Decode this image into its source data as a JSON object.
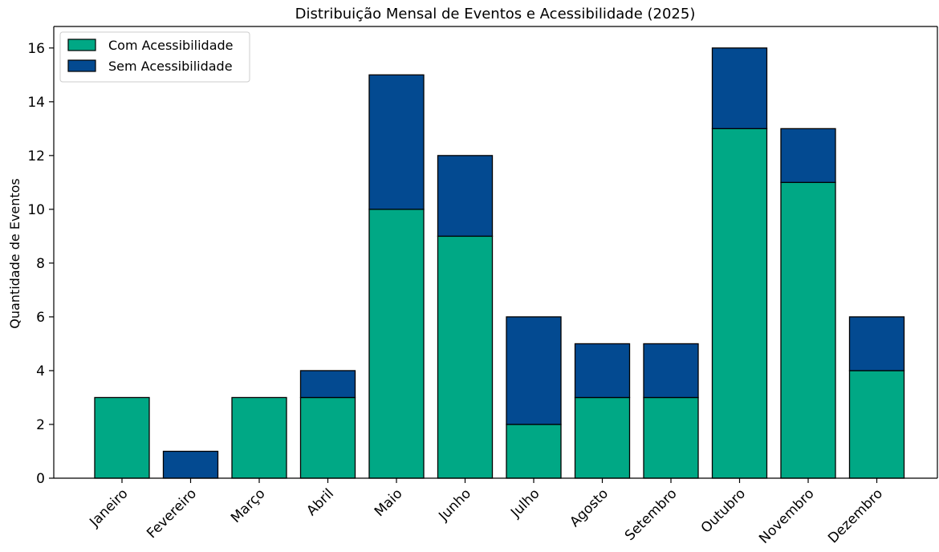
{
  "chart_data": {
    "type": "bar",
    "stacked": true,
    "title": "Distribuição Mensal de Eventos e Acessibilidade (2025)",
    "xlabel": "",
    "ylabel": "Quantidade de Eventos",
    "categories": [
      "Janeiro",
      "Fevereiro",
      "Março",
      "Abril",
      "Maio",
      "Junho",
      "Julho",
      "Agosto",
      "Setembro",
      "Outubro",
      "Novembro",
      "Dezembro"
    ],
    "series": [
      {
        "name": "Com Acessibilidade",
        "color": "#00a885",
        "values": [
          3,
          0,
          3,
          3,
          10,
          9,
          2,
          3,
          3,
          13,
          11,
          4
        ]
      },
      {
        "name": "Sem Acessibilidade",
        "color": "#034a91",
        "values": [
          0,
          1,
          0,
          1,
          5,
          3,
          4,
          2,
          2,
          3,
          2,
          2
        ]
      }
    ],
    "ylim": [
      0,
      16.8
    ],
    "yticks": [
      0,
      2,
      4,
      6,
      8,
      10,
      12,
      14,
      16
    ],
    "grid": false,
    "legend_position": "upper-left"
  }
}
